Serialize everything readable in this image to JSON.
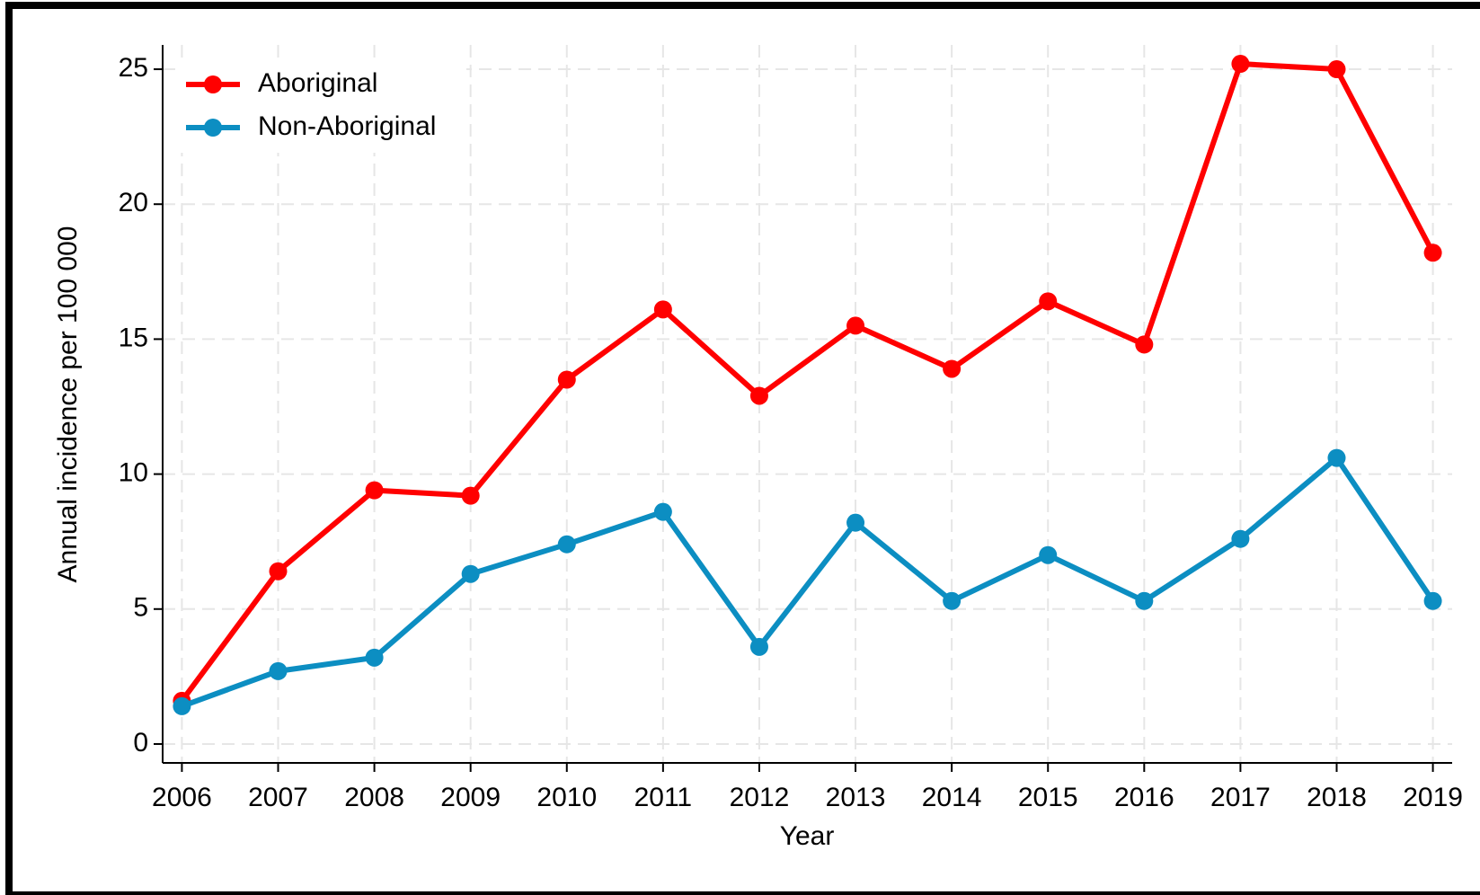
{
  "chart_data": {
    "type": "line",
    "x_label": "Year",
    "y_label": "Annual incidence per 100 000",
    "x": [
      2006,
      2007,
      2008,
      2009,
      2010,
      2011,
      2012,
      2013,
      2014,
      2015,
      2016,
      2017,
      2018,
      2019
    ],
    "series": [
      {
        "name": "Aboriginal",
        "color": "#ff0000",
        "values": [
          1.6,
          6.4,
          9.4,
          9.2,
          13.5,
          16.1,
          12.9,
          15.5,
          13.9,
          16.4,
          14.8,
          25.2,
          25.0,
          18.2
        ]
      },
      {
        "name": "Non-Aboriginal",
        "color": "#0c8ec2",
        "values": [
          1.4,
          2.7,
          3.2,
          6.3,
          7.4,
          8.6,
          3.6,
          8.2,
          5.3,
          7.0,
          5.3,
          7.6,
          10.6,
          5.3
        ]
      }
    ],
    "xlim": [
      2005.8,
      2019.2
    ],
    "xticks": [
      2006,
      2007,
      2008,
      2009,
      2010,
      2011,
      2012,
      2013,
      2014,
      2015,
      2016,
      2017,
      2018,
      2019
    ],
    "ylim": [
      -0.7,
      25.9
    ],
    "yticks": [
      0,
      5,
      10,
      15,
      20,
      25
    ],
    "grid": true,
    "legend": "upper left"
  }
}
